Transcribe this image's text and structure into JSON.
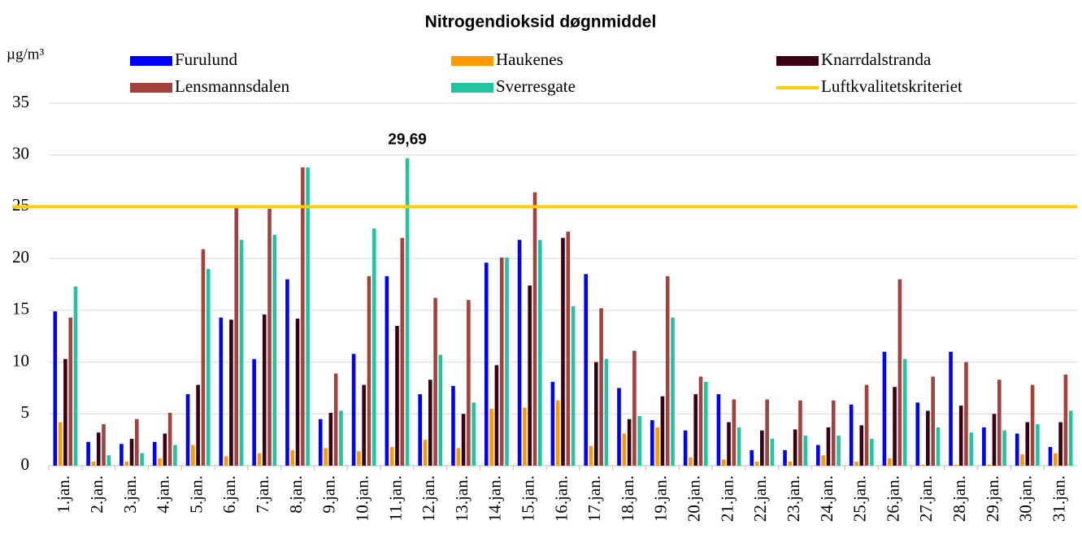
{
  "chart_data": {
    "type": "bar",
    "title": "Nitrogendioksid døgnmiddel",
    "ylabel": "µg/m³",
    "categories": [
      "1.jan.",
      "2.jan.",
      "3.jan.",
      "4.jan.",
      "5.jan.",
      "6.jan.",
      "7.jan.",
      "8.jan.",
      "9.jan.",
      "10.jan.",
      "11.jan.",
      "12.jan.",
      "13.jan.",
      "14.jan.",
      "15.jan.",
      "16.jan.",
      "17.jan.",
      "18.jan.",
      "19.jan.",
      "20.jan.",
      "21.jan.",
      "22.jan.",
      "23.jan.",
      "24.jan.",
      "25.jan.",
      "26.jan.",
      "27.jan.",
      "28.jan.",
      "29.jan.",
      "30.jan.",
      "31.jan."
    ],
    "series": [
      {
        "name": "Furulund",
        "color": "#0000ff",
        "values": [
          14.9,
          2.3,
          2.1,
          2.3,
          6.9,
          14.3,
          10.3,
          18.0,
          4.5,
          10.8,
          18.3,
          6.9,
          7.7,
          19.6,
          21.8,
          8.1,
          18.5,
          7.5,
          4.4,
          3.4,
          6.9,
          1.5,
          1.5,
          2.0,
          5.9,
          11.0,
          6.1,
          11.0,
          3.7,
          3.1,
          1.8
        ]
      },
      {
        "name": "Haukenes",
        "color": "#ff9900",
        "values": [
          4.2,
          0.4,
          0.4,
          0.7,
          2.0,
          0.9,
          1.2,
          1.5,
          1.7,
          1.4,
          1.8,
          2.5,
          1.7,
          5.5,
          5.6,
          6.3,
          1.9,
          3.1,
          3.7,
          0.8,
          0.6,
          0.4,
          0.4,
          1.0,
          0.4,
          0.7,
          0.1,
          0.1,
          0.1,
          1.1,
          1.2
        ]
      },
      {
        "name": "Knarrdalstranda",
        "color": "#3b0010",
        "values": [
          10.3,
          3.2,
          2.6,
          3.1,
          7.8,
          14.1,
          14.6,
          14.2,
          5.1,
          7.8,
          13.5,
          8.3,
          5.0,
          9.7,
          17.4,
          22.0,
          10.0,
          4.5,
          6.7,
          6.9,
          4.2,
          3.4,
          3.5,
          3.7,
          3.9,
          7.6,
          5.3,
          5.8,
          5.0,
          4.2,
          4.2
        ]
      },
      {
        "name": "Lensmannsdalen",
        "color": "#a5413d",
        "values": [
          14.3,
          4.0,
          4.5,
          5.1,
          20.9,
          25.0,
          24.8,
          28.8,
          8.9,
          18.3,
          22.0,
          16.2,
          16.0,
          20.1,
          26.4,
          22.6,
          15.2,
          11.1,
          18.3,
          8.6,
          6.4,
          6.4,
          6.3,
          6.3,
          7.8,
          18.0,
          8.6,
          10.0,
          8.3,
          7.8,
          8.8
        ]
      },
      {
        "name": "Sverresgate",
        "color": "#20c4a0",
        "values": [
          17.3,
          1.0,
          1.2,
          2.0,
          19.0,
          21.8,
          22.3,
          28.8,
          5.3,
          22.9,
          29.69,
          10.7,
          6.1,
          20.1,
          21.8,
          15.4,
          10.3,
          4.8,
          14.3,
          8.1,
          3.7,
          2.6,
          2.9,
          2.9,
          2.6,
          10.3,
          3.7,
          3.2,
          3.4,
          4.0,
          5.3
        ],
        "value_labels": [
          null,
          null,
          null,
          null,
          null,
          null,
          null,
          null,
          null,
          null,
          "29,69",
          null,
          null,
          null,
          null,
          null,
          null,
          null,
          null,
          null,
          null,
          null,
          null,
          null,
          null,
          null,
          null,
          null,
          null,
          null,
          null
        ]
      }
    ],
    "reference_line": {
      "name": "Luftkvalitetskriteriet",
      "value": 25,
      "color": "#ffcc00"
    },
    "ylim": [
      0,
      35
    ],
    "yticks": [
      0,
      5,
      10,
      15,
      20,
      25,
      30,
      35
    ],
    "grid": true
  }
}
